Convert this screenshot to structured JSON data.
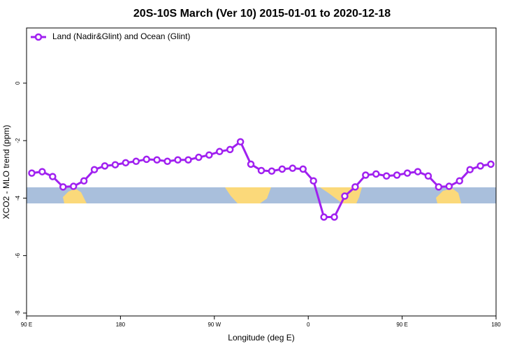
{
  "chart_data": {
    "type": "line",
    "title": "20S-10S March (Ver 10)   2015-01-01 to 2020-12-18",
    "x_label": "Longitude (deg E)",
    "y_label": "XCO2 - MLO trend (ppm)",
    "x": [
      95,
      105,
      115,
      125,
      135,
      145,
      155,
      165,
      175,
      185,
      195,
      205,
      215,
      225,
      235,
      245,
      255,
      265,
      275,
      285,
      295,
      305,
      315,
      325,
      335,
      345,
      355,
      365,
      375,
      385,
      395,
      405,
      415,
      425,
      435,
      445,
      455,
      465,
      475,
      485,
      495,
      505,
      515,
      525,
      535
    ],
    "series": [
      {
        "name": "Land (Nadir&Glint) and Ocean (Glint)",
        "color": "#a020f0",
        "values": [
          -3.13,
          -3.08,
          -3.25,
          -3.61,
          -3.59,
          -3.4,
          -3.01,
          -2.88,
          -2.84,
          -2.77,
          -2.72,
          -2.65,
          -2.67,
          -2.72,
          -2.67,
          -2.67,
          -2.58,
          -2.5,
          -2.38,
          -2.31,
          -2.04,
          -2.82,
          -3.04,
          -3.06,
          -2.99,
          -2.96,
          -2.99,
          -3.4,
          -4.66,
          -4.66,
          -3.93,
          -3.61,
          -3.2,
          -3.16,
          -3.23,
          -3.2,
          -3.13,
          -3.08,
          -3.23,
          -3.61,
          -3.59,
          -3.4,
          -3.01,
          -2.88,
          -2.82
        ]
      }
    ],
    "xlim": [
      90,
      540
    ],
    "xticks": [
      {
        "value": 90,
        "label": "90 E"
      },
      {
        "value": 180,
        "label": "180"
      },
      {
        "value": 270,
        "label": "90 W"
      },
      {
        "value": 360,
        "label": "0"
      },
      {
        "value": 450,
        "label": "90 E"
      },
      {
        "value": 540,
        "label": "180"
      }
    ],
    "ylim": [
      -8.1,
      1.92
    ],
    "yticks": [
      -8,
      -6,
      -4,
      -2,
      0
    ],
    "legend": "top-left"
  }
}
